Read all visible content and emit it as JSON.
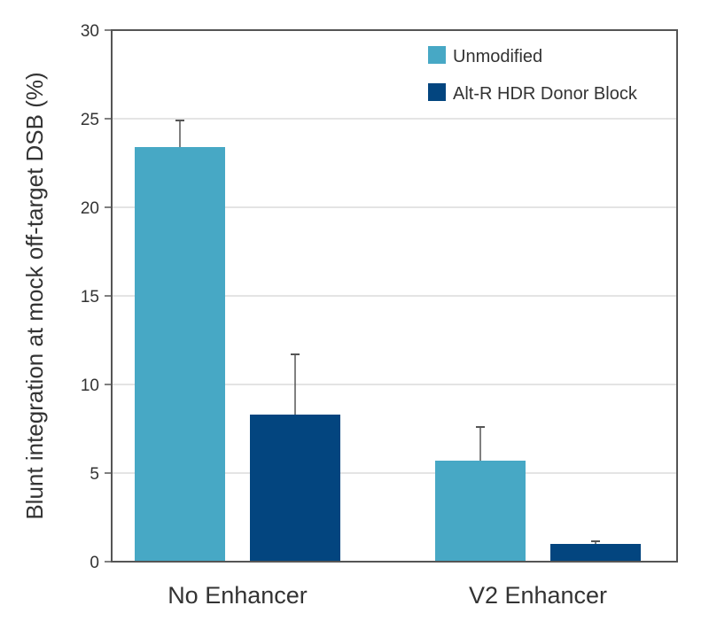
{
  "chart_data": {
    "type": "bar",
    "title": "",
    "xlabel": "",
    "ylabel": "Blunt integration at mock off-target DSB (%)",
    "ylim": [
      0,
      30
    ],
    "yticks": [
      0,
      5,
      10,
      15,
      20,
      25,
      30
    ],
    "grid": true,
    "legend_position": "top-right",
    "categories": [
      "No Enhancer",
      "V2 Enhancer"
    ],
    "series": [
      {
        "name": "Unmodified",
        "color": "#47a8c5",
        "values": [
          23.4,
          5.7
        ],
        "errors": [
          1.5,
          1.9
        ]
      },
      {
        "name": "Alt-R HDR Donor Block",
        "color": "#03457f",
        "values": [
          8.3,
          1.0
        ],
        "errors": [
          3.4,
          0.15
        ]
      }
    ]
  }
}
